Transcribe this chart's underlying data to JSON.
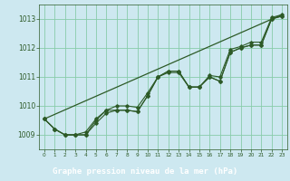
{
  "title": "Graphe pression niveau de la mer (hPa)",
  "background_color": "#cde8f0",
  "plot_bg_color": "#cde8f0",
  "grid_color": "#88ccaa",
  "line_color": "#2d5a27",
  "xlabel_bg": "#2d5a27",
  "xlabel_text_color": "#ffffff",
  "xlim": [
    -0.5,
    23.5
  ],
  "ylim": [
    1008.5,
    1013.5
  ],
  "yticks": [
    1009,
    1010,
    1011,
    1012,
    1013
  ],
  "xticks": [
    0,
    1,
    2,
    3,
    4,
    5,
    6,
    7,
    8,
    9,
    10,
    11,
    12,
    13,
    14,
    15,
    16,
    17,
    18,
    19,
    20,
    21,
    22,
    23
  ],
  "series1": [
    1009.55,
    1009.2,
    1009.0,
    1009.0,
    1009.0,
    1009.4,
    1009.75,
    1009.85,
    1009.85,
    1009.8,
    1010.35,
    1011.0,
    1011.2,
    1011.2,
    1010.65,
    1010.65,
    1011.0,
    1010.85,
    1011.85,
    1012.0,
    1012.1,
    1012.1,
    1013.0,
    1013.1
  ],
  "series2": [
    1009.55,
    1009.2,
    1009.0,
    1009.0,
    1009.0,
    1009.5,
    1009.85,
    1010.0,
    1010.0,
    1009.95,
    1010.45,
    1011.0,
    1011.2,
    1011.2,
    1010.65,
    1010.65,
    1011.05,
    1011.0,
    1011.95,
    1012.05,
    1012.2,
    1012.2,
    1013.05,
    1013.15
  ],
  "series3": [
    1009.55,
    1009.2,
    1009.0,
    1009.0,
    1009.1,
    1009.55,
    1009.85,
    1009.85,
    1009.85,
    1009.8,
    1010.35,
    1011.0,
    1011.15,
    1011.15,
    1010.65,
    1010.65,
    1011.0,
    1010.85,
    1011.85,
    1012.0,
    1012.1,
    1012.1,
    1013.0,
    1013.1
  ],
  "line_straight": [
    1009.55,
    1013.15
  ]
}
